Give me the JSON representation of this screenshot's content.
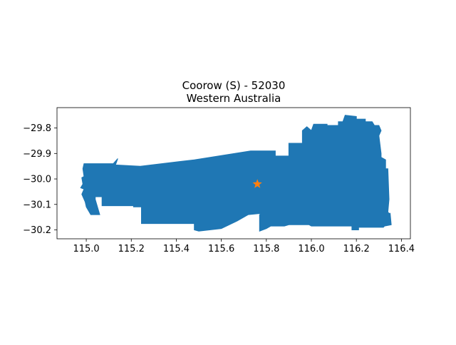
{
  "title": {
    "line1": "Coorow (S) - 52030",
    "line2": "Western Australia"
  },
  "colors": {
    "region_fill": "#1f77b4",
    "marker": "#ff7f0e",
    "axis": "#000000"
  },
  "chart_data": {
    "type": "map",
    "region_name": "Coorow (S)",
    "region_code": "52030",
    "state": "Western Australia",
    "xlim": [
      114.87,
      116.44
    ],
    "ylim": [
      -30.235,
      -29.72
    ],
    "x_ticks": [
      115.0,
      115.2,
      115.4,
      115.6,
      115.8,
      116.0,
      116.2,
      116.4
    ],
    "x_tick_labels": [
      "115.0",
      "115.2",
      "115.4",
      "115.6",
      "115.8",
      "116.0",
      "116.2",
      "116.4"
    ],
    "y_ticks": [
      -29.8,
      -29.9,
      -30.0,
      -30.1,
      -30.2
    ],
    "y_tick_labels": [
      "−29.8",
      "−29.9",
      "−30.0",
      "−30.1",
      "−30.2"
    ],
    "marker": {
      "shape": "star",
      "lon": 115.76,
      "lat": -30.02
    },
    "boundary": [
      [
        114.99,
        -29.94
      ],
      [
        115.12,
        -29.94
      ],
      [
        115.14,
        -29.92
      ],
      [
        115.13,
        -29.945
      ],
      [
        115.24,
        -29.95
      ],
      [
        115.48,
        -29.925
      ],
      [
        115.73,
        -29.89
      ],
      [
        115.84,
        -29.89
      ],
      [
        115.84,
        -29.91
      ],
      [
        115.9,
        -29.91
      ],
      [
        115.9,
        -29.86
      ],
      [
        115.96,
        -29.86
      ],
      [
        115.96,
        -29.81
      ],
      [
        115.98,
        -29.795
      ],
      [
        116.0,
        -29.81
      ],
      [
        116.01,
        -29.785
      ],
      [
        116.07,
        -29.785
      ],
      [
        116.07,
        -29.79
      ],
      [
        116.12,
        -29.79
      ],
      [
        116.12,
        -29.775
      ],
      [
        116.14,
        -29.775
      ],
      [
        116.15,
        -29.75
      ],
      [
        116.2,
        -29.755
      ],
      [
        116.2,
        -29.765
      ],
      [
        116.24,
        -29.765
      ],
      [
        116.24,
        -29.775
      ],
      [
        116.27,
        -29.775
      ],
      [
        116.28,
        -29.79
      ],
      [
        116.3,
        -29.79
      ],
      [
        116.31,
        -29.81
      ],
      [
        116.3,
        -29.83
      ],
      [
        116.31,
        -29.9
      ],
      [
        116.31,
        -29.915
      ],
      [
        116.33,
        -29.925
      ],
      [
        116.33,
        -29.96
      ],
      [
        116.34,
        -29.96
      ],
      [
        116.345,
        -30.08
      ],
      [
        116.34,
        -30.13
      ],
      [
        116.345,
        -30.135
      ],
      [
        116.35,
        -30.135
      ],
      [
        116.355,
        -30.18
      ],
      [
        116.325,
        -30.185
      ],
      [
        116.32,
        -30.19
      ],
      [
        116.29,
        -30.19
      ],
      [
        116.29,
        -30.19
      ],
      [
        116.21,
        -30.19
      ],
      [
        116.21,
        -30.2
      ],
      [
        116.18,
        -30.2
      ],
      [
        116.18,
        -30.185
      ],
      [
        116.0,
        -30.185
      ],
      [
        115.99,
        -30.18
      ],
      [
        115.9,
        -30.18
      ],
      [
        115.88,
        -30.185
      ],
      [
        115.82,
        -30.185
      ],
      [
        115.8,
        -30.195
      ],
      [
        115.77,
        -30.205
      ],
      [
        115.77,
        -30.14
      ],
      [
        115.78,
        -30.135
      ],
      [
        115.72,
        -30.14
      ],
      [
        115.67,
        -30.165
      ],
      [
        115.6,
        -30.195
      ],
      [
        115.5,
        -30.205
      ],
      [
        115.48,
        -30.2
      ],
      [
        115.48,
        -30.175
      ],
      [
        115.245,
        -30.175
      ],
      [
        115.245,
        -30.11
      ],
      [
        115.21,
        -30.11
      ],
      [
        115.21,
        -30.105
      ],
      [
        115.07,
        -30.105
      ],
      [
        115.07,
        -30.07
      ],
      [
        115.04,
        -30.07
      ],
      [
        115.04,
        -30.08
      ],
      [
        115.06,
        -30.14
      ],
      [
        115.02,
        -30.14
      ],
      [
        115.0,
        -30.11
      ],
      [
        114.995,
        -30.09
      ],
      [
        114.98,
        -30.06
      ],
      [
        114.99,
        -30.04
      ],
      [
        114.975,
        -30.035
      ],
      [
        114.985,
        -30.02
      ],
      [
        114.98,
        -29.995
      ],
      [
        114.99,
        -29.99
      ],
      [
        114.985,
        -29.96
      ],
      [
        114.99,
        -29.94
      ]
    ]
  }
}
